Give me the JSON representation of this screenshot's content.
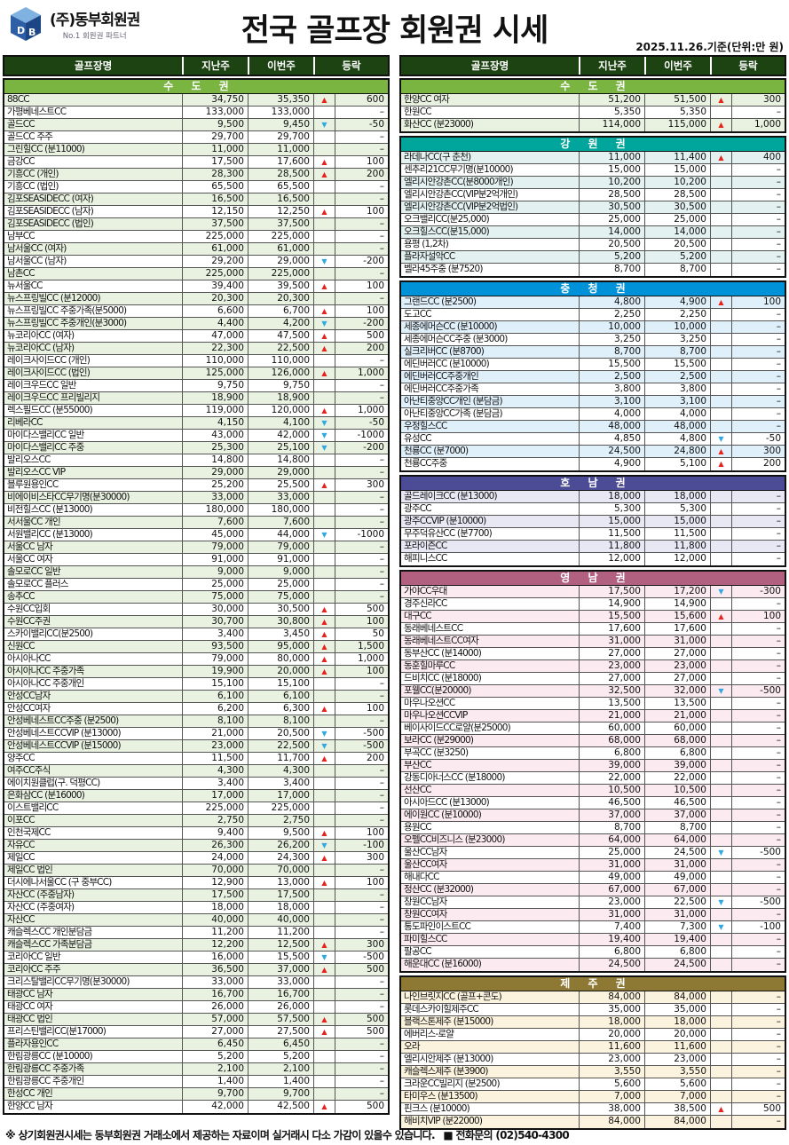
{
  "header": {
    "logo": {
      "company": "(주)동부회원권",
      "tagline": "No.1 회원권 파트너"
    },
    "title": "전국 골프장 회원권 시세",
    "date_note": "2025.11.26.기준(단위:만 원)"
  },
  "columns": {
    "name": "골프장명",
    "last_week": "지난주",
    "this_week": "이번주",
    "change": "등락"
  },
  "icons": {
    "up_arrow": "▲",
    "down_arrow": "▼"
  },
  "colors": {
    "header_bg": "#1d4313",
    "up": "#e8231c",
    "down": "#2fa9e1"
  },
  "left_sections": [
    {
      "name": "수 도 권",
      "band_color": "#7ab441",
      "tint": "#e9f1e1",
      "rows": [
        [
          "88CC",
          "34,750",
          "35,350",
          "up",
          "600"
        ],
        [
          "가평베네스트CC",
          "133,000",
          "133,000",
          "",
          "–"
        ],
        [
          "골드CC",
          "9,500",
          "9,450",
          "down",
          "-50"
        ],
        [
          "골드CC 주주",
          "29,700",
          "29,700",
          "",
          "–"
        ],
        [
          "그린힐CC (분11000)",
          "11,000",
          "11,000",
          "",
          "–"
        ],
        [
          "금강CC",
          "17,500",
          "17,600",
          "up",
          "100"
        ],
        [
          "기흥CC (개인)",
          "28,300",
          "28,500",
          "up",
          "200"
        ],
        [
          "기흥CC (법인)",
          "65,500",
          "65,500",
          "",
          "–"
        ],
        [
          "김포SEASIDECC (여자)",
          "16,500",
          "16,500",
          "",
          "–"
        ],
        [
          "김포SEASIDECC (남자)",
          "12,150",
          "12,250",
          "up",
          "100"
        ],
        [
          "김포SEASIDECC (법인)",
          "37,500",
          "37,500",
          "",
          "–"
        ],
        [
          "남부CC",
          "225,000",
          "225,000",
          "",
          "–"
        ],
        [
          "남서울CC (여자)",
          "61,000",
          "61,000",
          "",
          "–"
        ],
        [
          "남서울CC (남자)",
          "29,200",
          "29,000",
          "down",
          "-200"
        ],
        [
          "남촌CC",
          "225,000",
          "225,000",
          "",
          "–"
        ],
        [
          "뉴서울CC",
          "39,400",
          "39,500",
          "up",
          "100"
        ],
        [
          "뉴스프링빌CC (분12000)",
          "20,300",
          "20,300",
          "",
          "–"
        ],
        [
          "뉴스프링빌CC 주중가족(분5000)",
          "6,600",
          "6,700",
          "up",
          "100"
        ],
        [
          "뉴스프링빌CC 주중개인(분3000)",
          "4,400",
          "4,200",
          "down",
          "-200"
        ],
        [
          "뉴코리아CC (여자)",
          "47,000",
          "47,500",
          "up",
          "500"
        ],
        [
          "뉴코리아CC (남자)",
          "22,300",
          "22,500",
          "up",
          "200"
        ],
        [
          "레이크사이드CC (개인)",
          "110,000",
          "110,000",
          "",
          "–"
        ],
        [
          "레이크사이드CC (법인)",
          "125,000",
          "126,000",
          "up",
          "1,000"
        ],
        [
          "레이크우드CC 일반",
          "9,750",
          "9,750",
          "",
          "–"
        ],
        [
          "레이크우드CC 프리빌리지",
          "18,900",
          "18,900",
          "",
          "–"
        ],
        [
          "렉스필드CC (분55000)",
          "119,000",
          "120,000",
          "up",
          "1,000"
        ],
        [
          "리베라CC",
          "4,150",
          "4,100",
          "down",
          "-50"
        ],
        [
          "마이다스밸리CC 일반",
          "43,000",
          "42,000",
          "down",
          "-1000"
        ],
        [
          "마이다스밸리CC 주중",
          "25,300",
          "25,100",
          "down",
          "-200"
        ],
        [
          "발리오스CC",
          "14,800",
          "14,800",
          "",
          "–"
        ],
        [
          "발리오스CC VIP",
          "29,000",
          "29,000",
          "",
          "–"
        ],
        [
          "블루원용인CC",
          "25,200",
          "25,500",
          "up",
          "300"
        ],
        [
          "비에이비스타CC무기명(분30000)",
          "33,000",
          "33,000",
          "",
          "–"
        ],
        [
          "비전힐스CC (분13000)",
          "180,000",
          "180,000",
          "",
          "–"
        ],
        [
          "서서울CC 개인",
          "7,600",
          "7,600",
          "",
          "–"
        ],
        [
          "서원밸리CC (분13000)",
          "45,000",
          "44,000",
          "down",
          "-1000"
        ],
        [
          "서울CC 남자",
          "79,000",
          "79,000",
          "",
          "–"
        ],
        [
          "서울CC 여자",
          "91,000",
          "91,000",
          "",
          "–"
        ],
        [
          "솔모로CC 일반",
          "9,000",
          "9,000",
          "",
          "–"
        ],
        [
          "솔모로CC 플러스",
          "25,000",
          "25,000",
          "",
          "–"
        ],
        [
          "송추CC",
          "75,000",
          "75,000",
          "",
          "–"
        ],
        [
          "수원CC입회",
          "30,000",
          "30,500",
          "up",
          "500"
        ],
        [
          "수원CC주권",
          "30,700",
          "30,800",
          "up",
          "100"
        ],
        [
          "스카이밸리CC(분2500)",
          "3,400",
          "3,450",
          "up",
          "50"
        ],
        [
          "신원CC",
          "93,500",
          "95,000",
          "up",
          "1,500"
        ],
        [
          "아시아나CC",
          "79,000",
          "80,000",
          "up",
          "1,000"
        ],
        [
          "아시아나CC 주중가족",
          "19,900",
          "20,000",
          "up",
          "100"
        ],
        [
          "아시아나CC 주중개인",
          "15,100",
          "15,100",
          "",
          "–"
        ],
        [
          "안성CC남자",
          "6,100",
          "6,100",
          "",
          "–"
        ],
        [
          "안성CC여자",
          "6,200",
          "6,300",
          "up",
          "100"
        ],
        [
          "안성베네스트CC주중 (분2500)",
          "8,100",
          "8,100",
          "",
          "–"
        ],
        [
          "안성베네스트CCVIP (분13000)",
          "21,000",
          "20,500",
          "down",
          "-500"
        ],
        [
          "안성베네스트CCVIP (분15000)",
          "23,000",
          "22,500",
          "down",
          "-500"
        ],
        [
          "양주CC",
          "11,500",
          "11,700",
          "up",
          "200"
        ],
        [
          "여주CC주식",
          "4,300",
          "4,300",
          "",
          "–"
        ],
        [
          "에이치원클럽(구. 덕평CC)",
          "3,400",
          "3,400",
          "",
          "–"
        ],
        [
          "은화삼CC (분16000)",
          "17,000",
          "17,000",
          "",
          "–"
        ],
        [
          "이스트밸리CC",
          "225,000",
          "225,000",
          "",
          "–"
        ],
        [
          "이포CC",
          "2,750",
          "2,750",
          "",
          "–"
        ],
        [
          "인천국제CC",
          "9,400",
          "9,500",
          "up",
          "100"
        ],
        [
          "자유CC",
          "26,300",
          "26,200",
          "down",
          "-100"
        ],
        [
          "제일CC",
          "24,000",
          "24,300",
          "up",
          "300"
        ],
        [
          "제일CC 법인",
          "70,000",
          "70,000",
          "",
          "–"
        ],
        [
          "더시에나서울CC (구 중부CC)",
          "12,900",
          "13,000",
          "up",
          "100"
        ],
        [
          "자산CC (주중남자)",
          "17,500",
          "17,500",
          "",
          "–"
        ],
        [
          "자산CC (주중여자)",
          "18,000",
          "18,000",
          "",
          "–"
        ],
        [
          "자산CC",
          "40,000",
          "40,000",
          "",
          "–"
        ],
        [
          "캐슬렉스CC 개인분담금",
          "11,200",
          "11,200",
          "",
          "–"
        ],
        [
          "캐슬렉스CC 가족분담금",
          "12,200",
          "12,500",
          "up",
          "300"
        ],
        [
          "코리아CC 일반",
          "16,000",
          "15,500",
          "down",
          "-500"
        ],
        [
          "코리아CC 주주",
          "36,500",
          "37,000",
          "up",
          "500"
        ],
        [
          "크리스탈밸리CC무기명(분30000)",
          "33,000",
          "33,000",
          "",
          "–"
        ],
        [
          "태광CC 남자",
          "16,700",
          "16,700",
          "",
          "–"
        ],
        [
          "태광CC 여자",
          "26,000",
          "26,000",
          "",
          "–"
        ],
        [
          "태광CC 법인",
          "57,000",
          "57,500",
          "up",
          "500"
        ],
        [
          "프리스틴밸리CC(분17000)",
          "27,000",
          "27,500",
          "up",
          "500"
        ],
        [
          "플라자용인CC",
          "6,450",
          "6,450",
          "",
          "–"
        ],
        [
          "한림광릉CC (분10000)",
          "5,200",
          "5,200",
          "",
          "–"
        ],
        [
          "한림광릉CC 주중가족",
          "2,100",
          "2,100",
          "",
          "–"
        ],
        [
          "한림광릉CC 주중개인",
          "1,400",
          "1,400",
          "",
          "–"
        ],
        [
          "한성CC 개인",
          "9,700",
          "9,700",
          "",
          "–"
        ],
        [
          "한양CC 남자",
          "42,000",
          "42,500",
          "up",
          "500"
        ]
      ]
    }
  ],
  "right_sections": [
    {
      "name": "수 도 권",
      "band_color": "#7ab441",
      "tint": "#e9f1e1",
      "rows": [
        [
          "한양CC 여자",
          "51,200",
          "51,500",
          "up",
          "300"
        ],
        [
          "한원CC",
          "5,350",
          "5,350",
          "",
          "–"
        ],
        [
          "화산CC (분23000)",
          "114,000",
          "115,000",
          "up",
          "1,000"
        ]
      ]
    },
    {
      "name": "강 원 권",
      "band_color": "#00a69b",
      "tint": "#e3f2f0",
      "rows": [
        [
          "라데나CC(구 춘천)",
          "11,000",
          "11,400",
          "up",
          "400"
        ],
        [
          "센추리21CC무기명(분10000)",
          "15,000",
          "15,000",
          "",
          "–"
        ],
        [
          "엘리시안강촌CC(분8000개인)",
          "10,200",
          "10,200",
          "",
          "–"
        ],
        [
          "엘리시안강촌CC(VIP분2억개인)",
          "28,500",
          "28,500",
          "",
          "–"
        ],
        [
          "엘리시안강촌CC(VIP분2억법인)",
          "30,500",
          "30,500",
          "",
          "–"
        ],
        [
          "오크밸리CC(분25,000)",
          "25,000",
          "25,000",
          "",
          "–"
        ],
        [
          "오크힐스CC(분15,000)",
          "14,000",
          "14,000",
          "",
          "–"
        ],
        [
          "용평 (1,2차)",
          "20,500",
          "20,500",
          "",
          "–"
        ],
        [
          "플라자설악CC",
          "5,200",
          "5,200",
          "",
          "–"
        ],
        [
          "벨라45주중 (분7520)",
          "8,700",
          "8,700",
          "",
          "–"
        ]
      ]
    },
    {
      "name": "충 청 권",
      "band_color": "#0092d8",
      "tint": "#e0f0fb",
      "rows": [
        [
          "그랜드CC (분2500)",
          "4,800",
          "4,900",
          "up",
          "100"
        ],
        [
          "도고CC",
          "2,250",
          "2,250",
          "",
          "–"
        ],
        [
          "세종에머슨CC (분10000)",
          "10,000",
          "10,000",
          "",
          "–"
        ],
        [
          "세종에머슨CC주중 (분3000)",
          "3,250",
          "3,250",
          "",
          "–"
        ],
        [
          "실크리버CC (분8700)",
          "8,700",
          "8,700",
          "",
          "–"
        ],
        [
          "에딘버러CC (분10000)",
          "15,500",
          "15,500",
          "",
          "–"
        ],
        [
          "에딘버러CC주중개인",
          "2,500",
          "2,500",
          "",
          "–"
        ],
        [
          "에딘버러CC주중가족",
          "3,800",
          "3,800",
          "",
          "–"
        ],
        [
          "아난티중앙CC개인 (분담금)",
          "3,100",
          "3,100",
          "",
          "–"
        ],
        [
          "아난티중앙CC가족 (분담금)",
          "4,000",
          "4,000",
          "",
          "–"
        ],
        [
          "우정힐스CC",
          "48,000",
          "48,000",
          "",
          "–"
        ],
        [
          "유성CC",
          "4,850",
          "4,800",
          "down",
          "-50"
        ],
        [
          "천룡CC (분7000)",
          "24,500",
          "24,800",
          "up",
          "300"
        ],
        [
          "천룡CC주중",
          "4,900",
          "5,100",
          "up",
          "200"
        ]
      ]
    },
    {
      "name": "호 남 권",
      "band_color": "#4c4b95",
      "tint": "#e8e7f4",
      "rows": [
        [
          "골드레이크CC (분13000)",
          "18,000",
          "18,000",
          "",
          "–"
        ],
        [
          "광주CC",
          "5,300",
          "5,300",
          "",
          "–"
        ],
        [
          "광주CCVIP (분10000)",
          "15,000",
          "15,000",
          "",
          "–"
        ],
        [
          "무주덕유산CC (분7700)",
          "11,500",
          "11,500",
          "",
          "–"
        ],
        [
          "포라이즌CC",
          "11,800",
          "11,800",
          "",
          "–"
        ],
        [
          "해피니스CC",
          "12,000",
          "12,000",
          "",
          "–"
        ]
      ]
    },
    {
      "name": "영 남 권",
      "band_color": "#b26080",
      "tint": "#fbeaf0",
      "rows": [
        [
          "가야CC우대",
          "17,500",
          "17,200",
          "down",
          "-300"
        ],
        [
          "경주신라CC",
          "14,900",
          "14,900",
          "",
          "–"
        ],
        [
          "대구CC",
          "15,500",
          "15,600",
          "up",
          "100"
        ],
        [
          "동래베네스트CC",
          "17,600",
          "17,600",
          "",
          "–"
        ],
        [
          "동래베네스트CC여자",
          "31,000",
          "31,000",
          "",
          "–"
        ],
        [
          "동부산CC (분14000)",
          "27,000",
          "27,000",
          "",
          "–"
        ],
        [
          "동훈힐마루CC",
          "23,000",
          "23,000",
          "",
          "–"
        ],
        [
          "드비치CC (분18000)",
          "27,000",
          "27,000",
          "",
          "–"
        ],
        [
          "포웰CC(분20000)",
          "32,500",
          "32,000",
          "down",
          "-500"
        ],
        [
          "마우나오션CC",
          "13,500",
          "13,500",
          "",
          "–"
        ],
        [
          "마우나오션CCVIP",
          "21,000",
          "21,000",
          "",
          "–"
        ],
        [
          "베이사이드CC로얄(분25000)",
          "60,000",
          "60,000",
          "",
          "–"
        ],
        [
          "보라CC (분29000)",
          "68,000",
          "68,000",
          "",
          "–"
        ],
        [
          "부곡CC (분3250)",
          "6,800",
          "6,800",
          "",
          "–"
        ],
        [
          "부산CC",
          "39,000",
          "39,000",
          "",
          "–"
        ],
        [
          "강동디아너스CC (분18000)",
          "22,000",
          "22,000",
          "",
          "–"
        ],
        [
          "선산CC",
          "10,500",
          "10,500",
          "",
          "–"
        ],
        [
          "아시아드CC (분13000)",
          "46,500",
          "46,500",
          "",
          "–"
        ],
        [
          "에이원CC (분10000)",
          "37,000",
          "37,000",
          "",
          "–"
        ],
        [
          "용원CC",
          "8,700",
          "8,700",
          "",
          "–"
        ],
        [
          "오펠CC비즈니스 (분23000)",
          "64,000",
          "64,000",
          "",
          "–"
        ],
        [
          "울산CC남자",
          "25,000",
          "24,500",
          "down",
          "-500"
        ],
        [
          "울산CC여자",
          "31,000",
          "31,000",
          "",
          "–"
        ],
        [
          "해내다CC",
          "49,000",
          "49,000",
          "",
          "–"
        ],
        [
          "정산CC (분32000)",
          "67,000",
          "67,000",
          "",
          "–"
        ],
        [
          "창원CC남자",
          "23,000",
          "22,500",
          "down",
          "-500"
        ],
        [
          "창원CC여자",
          "31,000",
          "31,000",
          "",
          "–"
        ],
        [
          "통도파인이스트CC",
          "7,400",
          "7,300",
          "down",
          "-100"
        ],
        [
          "파미힐스CC",
          "19,400",
          "19,400",
          "",
          "–"
        ],
        [
          "팔공CC",
          "6,800",
          "6,800",
          "",
          "–"
        ],
        [
          "해운대CC (분16000)",
          "24,500",
          "24,500",
          "",
          "–"
        ]
      ]
    },
    {
      "name": "제 주 권",
      "band_color": "#8e7934",
      "tint": "#fcf3df",
      "rows": [
        [
          "나인브릿지CC (골프+콘도)",
          "84,000",
          "84,000",
          "",
          "–"
        ],
        [
          "롯데스카이힐제주CC",
          "35,000",
          "35,000",
          "",
          "–"
        ],
        [
          "블랙스톤제주 (분15000)",
          "18,000",
          "18,000",
          "",
          "–"
        ],
        [
          "에버리스-로얄",
          "20,000",
          "20,000",
          "",
          "–"
        ],
        [
          "오라",
          "11,600",
          "11,600",
          "",
          "–"
        ],
        [
          "엘리시안제주 (분13000)",
          "23,000",
          "23,000",
          "",
          "–"
        ],
        [
          "캐슬렉스제주 (분3900)",
          "3,550",
          "3,550",
          "",
          "–"
        ],
        [
          "크라운CC빌리지 (분2500)",
          "5,600",
          "5,600",
          "",
          "–"
        ],
        [
          "타미우스 (분13500)",
          "7,000",
          "7,000",
          "",
          "–"
        ],
        [
          "핀크스 (분10000)",
          "38,000",
          "38,500",
          "up",
          "500"
        ],
        [
          "해비치VIP (분22000)",
          "84,000",
          "84,000",
          "",
          "–"
        ]
      ]
    }
  ],
  "footer": {
    "disclaimer": "※ 상기회원권시세는 동부회원권 거래소에서 제공하는 자료이며 실거래시 다소 가감이 있을수 있습니다.",
    "contact": "■ 전화문의 (02)540-4300"
  }
}
